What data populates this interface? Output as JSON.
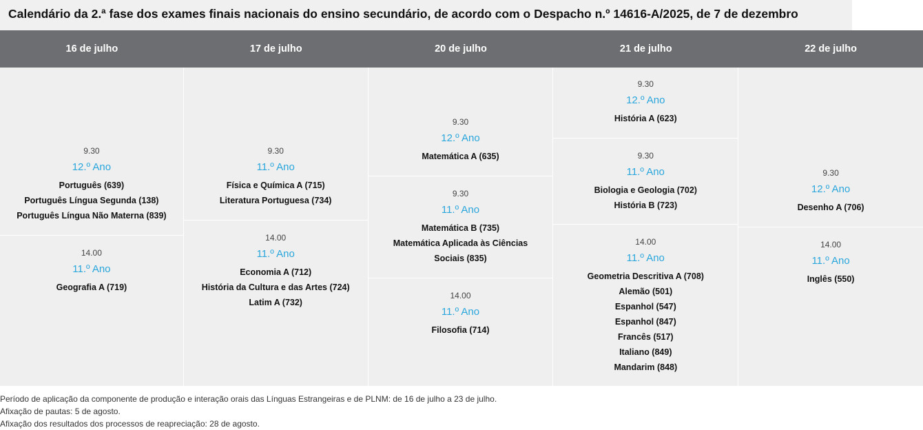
{
  "title": "Calendário da 2.ª fase dos exames finais nacionais do ensino secundário, de acordo com o Despacho n.º 14616-A/2025, de 7 de dezembro",
  "colors": {
    "header_bg": "#6d6e71",
    "cell_bg": "#efefef",
    "year_text": "#2aa6dc"
  },
  "columns": [
    {
      "date": "16 de julho",
      "sessions": [
        {
          "time": "9.30",
          "year": "12.º Ano",
          "subjects": [
            "Português (639)",
            "Português Língua Segunda (138)",
            "Português Língua Não Materna (839)"
          ]
        },
        {
          "time": "14.00",
          "year": "11.º Ano",
          "subjects": [
            "Geografia A (719)"
          ]
        }
      ]
    },
    {
      "date": "17 de julho",
      "sessions": [
        {
          "time": "9.30",
          "year": "11.º Ano",
          "subjects": [
            "Física e Química A (715)",
            "Literatura Portuguesa (734)"
          ]
        },
        {
          "time": "14.00",
          "year": "11.º Ano",
          "subjects": [
            "Economia A (712)",
            "História da Cultura e das Artes (724)",
            "Latim A (732)"
          ]
        }
      ]
    },
    {
      "date": "20 de julho",
      "sessions": [
        {
          "time": "9.30",
          "year": "12.º Ano",
          "subjects": [
            "Matemática A (635)"
          ]
        },
        {
          "time": "9.30",
          "year": "11.º Ano",
          "subjects": [
            "Matemática B (735)",
            "Matemática Aplicada às Ciências",
            "Sociais (835)"
          ]
        },
        {
          "time": "14.00",
          "year": "11.º Ano",
          "subjects": [
            "Filosofia (714)"
          ]
        }
      ]
    },
    {
      "date": "21 de julho",
      "sessions": [
        {
          "time": "9.30",
          "year": "12.º Ano",
          "subjects": [
            "História A (623)"
          ]
        },
        {
          "time": "9.30",
          "year": "11.º Ano",
          "subjects": [
            "Biologia e Geologia (702)",
            "História B (723)"
          ]
        },
        {
          "time": "14.00",
          "year": "11.º Ano",
          "subjects": [
            "Geometria Descritiva A (708)",
            "Alemão (501)",
            "Espanhol (547)",
            "Espanhol (847)",
            "Francês (517)",
            "Italiano (849)",
            "Mandarim (848)"
          ]
        }
      ]
    },
    {
      "date": "22 de julho",
      "sessions": [
        {
          "time": "9.30",
          "year": "12.º Ano",
          "subjects": [
            "Desenho A (706)"
          ]
        },
        {
          "time": "14.00",
          "year": "11.º Ano",
          "subjects": [
            "Inglês (550)"
          ]
        }
      ]
    }
  ],
  "notes": [
    "Período de aplicação da componente de produção e interação orais das Línguas Estrangeiras e de PLNM: de 16 de julho a 23 de julho.",
    "Afixação de pautas: 5 de agosto.",
    "Afixação dos resultados dos processos de reapreciação: 28 de agosto."
  ]
}
